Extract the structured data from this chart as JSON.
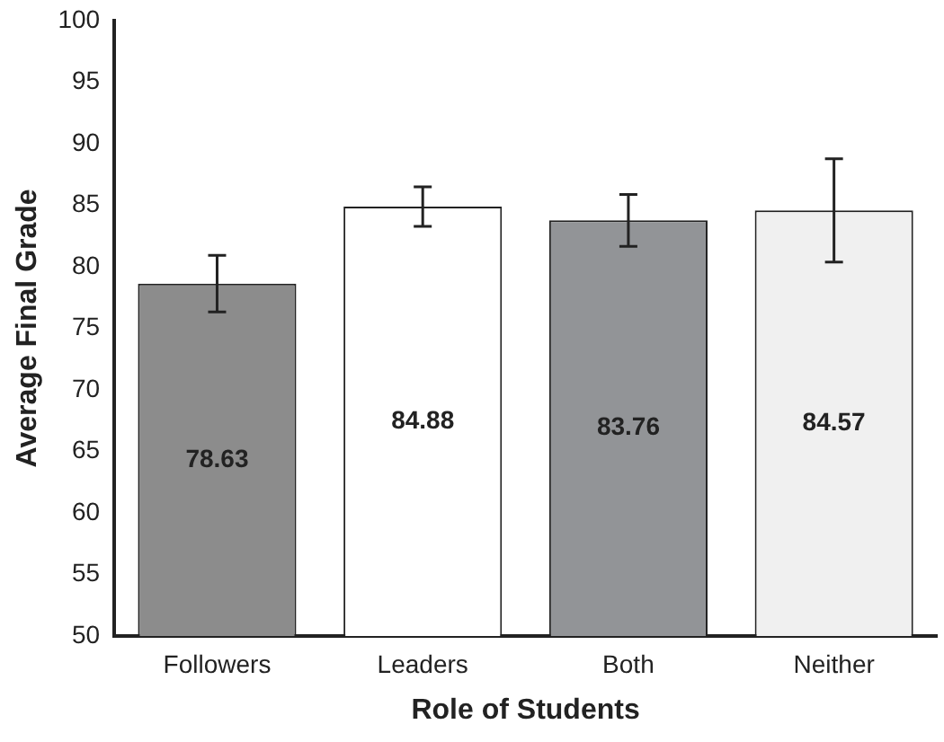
{
  "chart_data": {
    "type": "bar",
    "xlabel": "Role of Students",
    "ylabel": "Average Final Grade",
    "categories": [
      "Followers",
      "Leaders",
      "Both",
      "Neither"
    ],
    "values": [
      78.63,
      84.88,
      83.76,
      84.57
    ],
    "colors": [
      "#8c8c8c",
      "#ffffff",
      "#929497",
      "#f0f0f0"
    ],
    "errors": [
      2.3,
      1.6,
      2.1,
      4.2
    ],
    "ylim": [
      50,
      100
    ],
    "yticks": [
      50,
      55,
      60,
      65,
      70,
      75,
      80,
      85,
      90,
      95,
      100
    ],
    "grid": false,
    "legend": false,
    "data_labels": true
  }
}
